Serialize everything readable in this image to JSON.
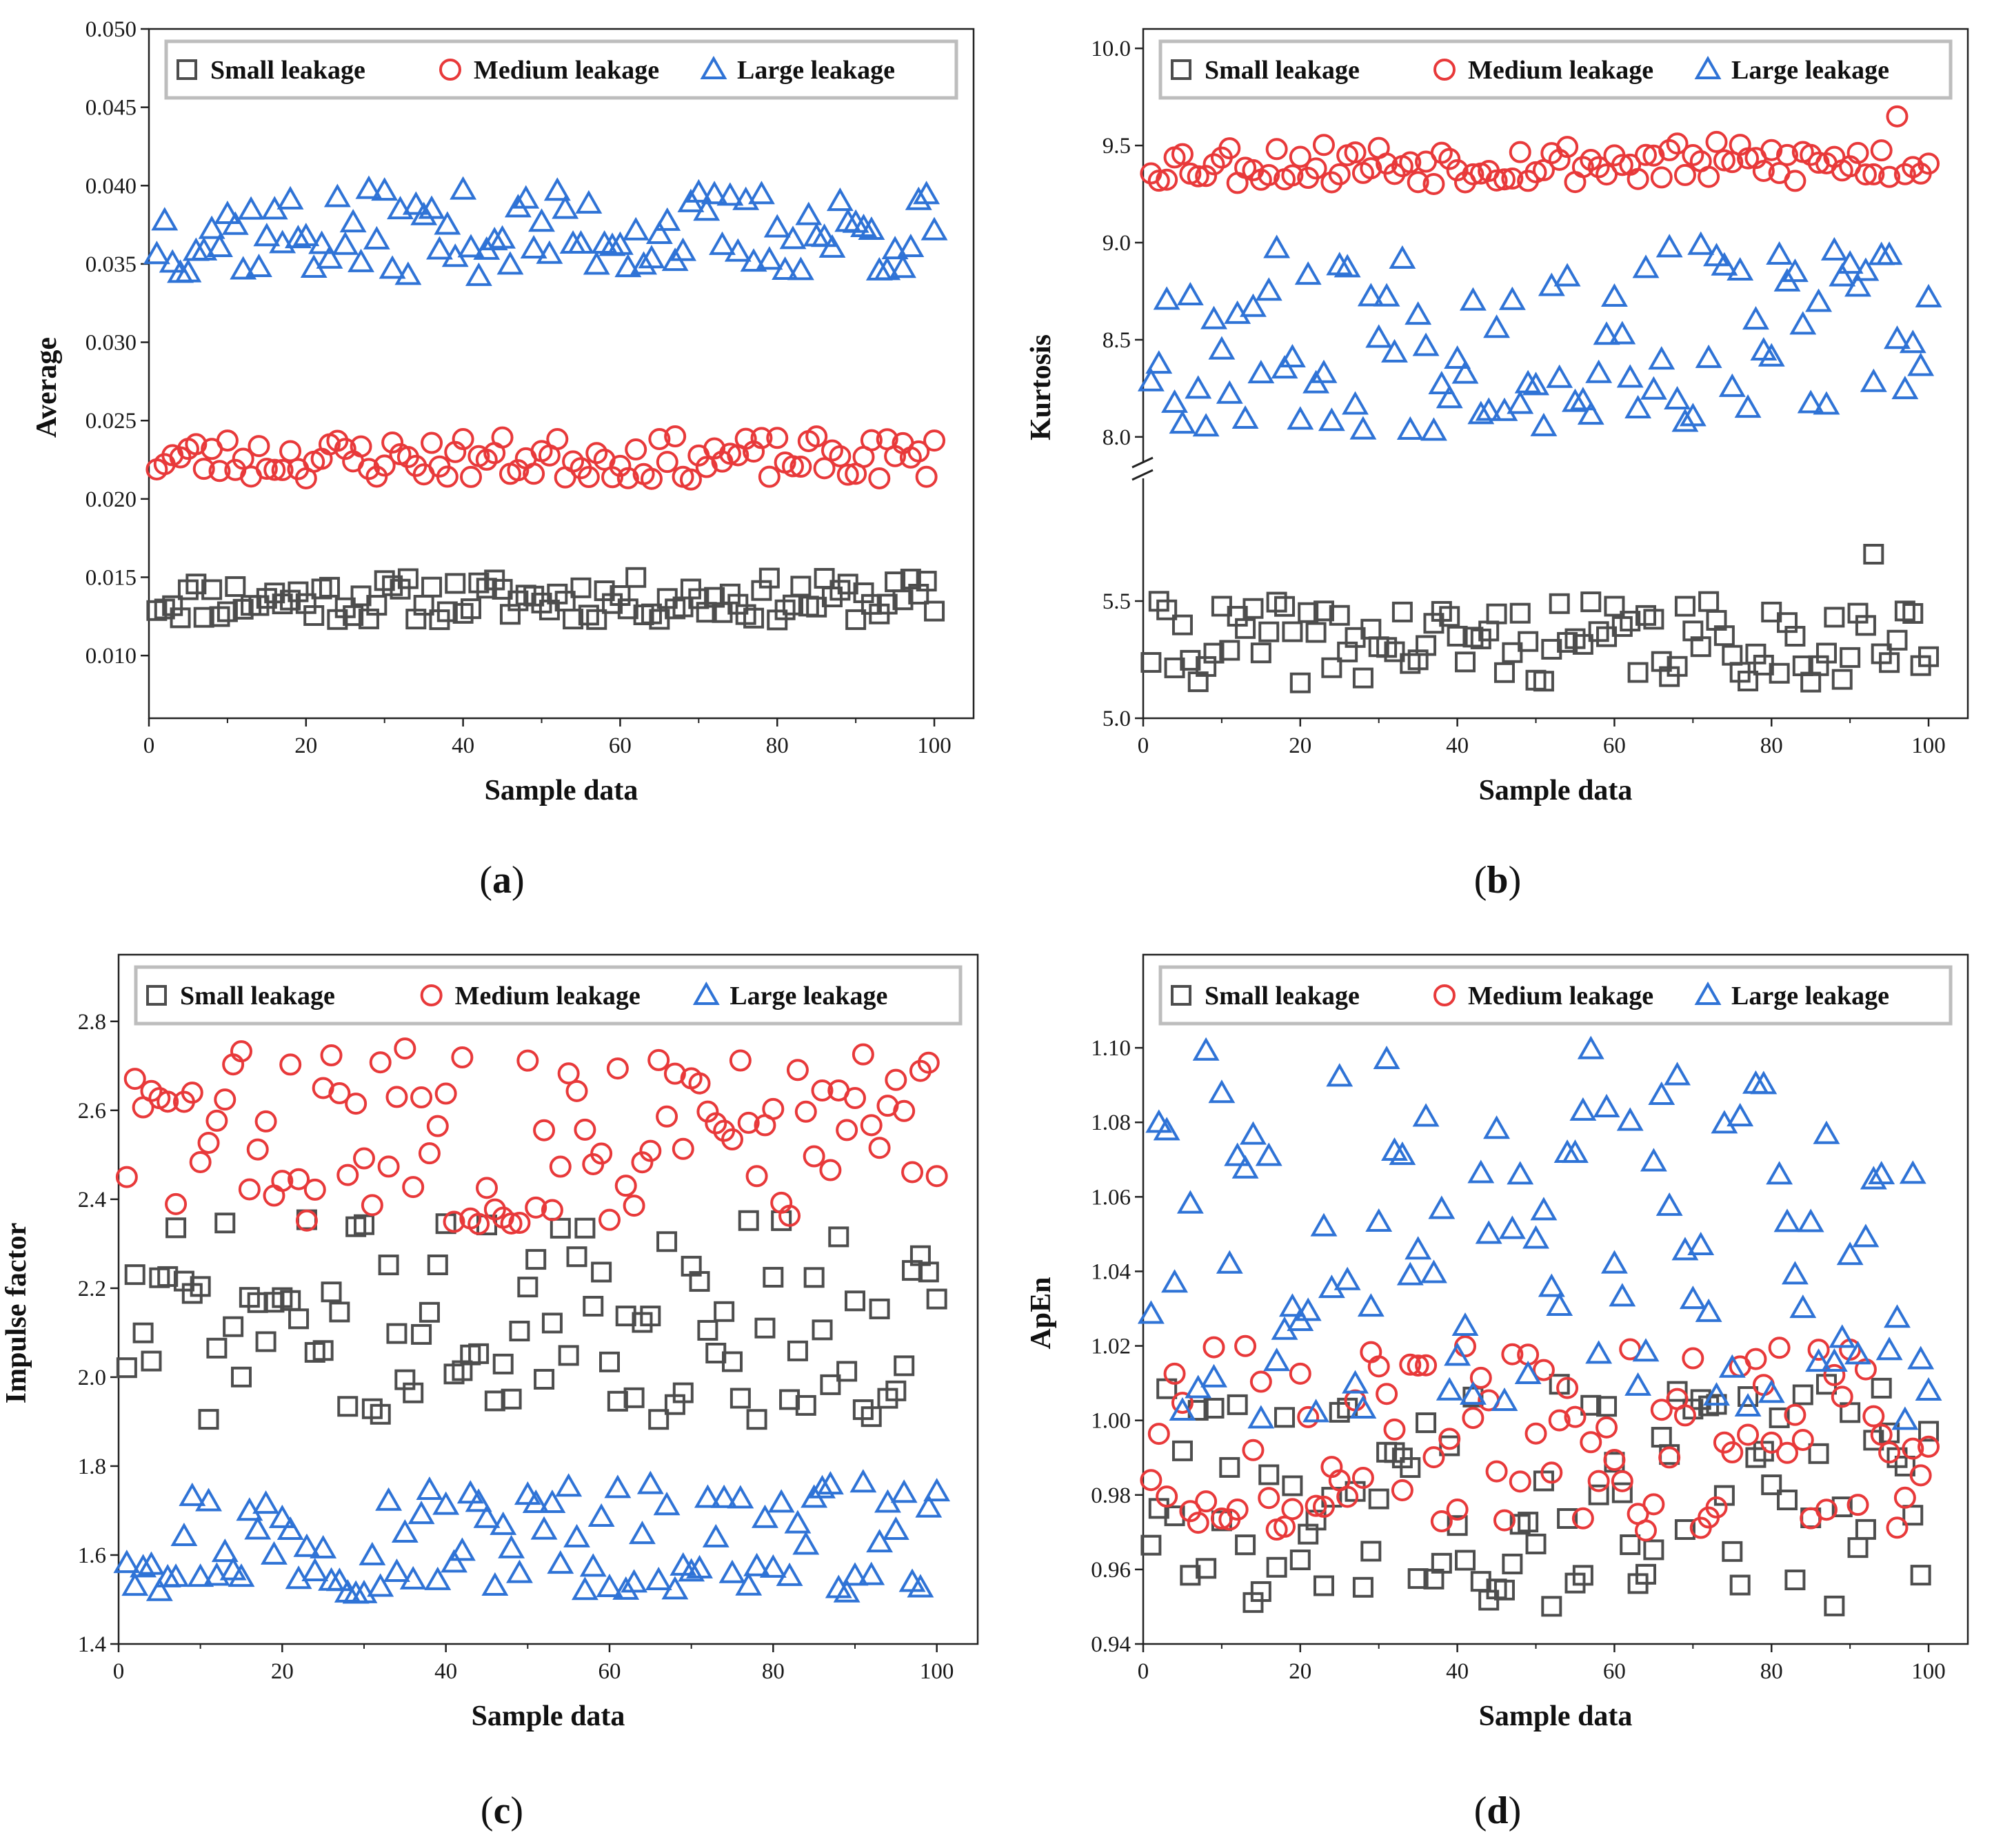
{
  "figure": {
    "panels": [
      {
        "label": "a",
        "legend": [
          "Small leakage",
          "Medium leakage",
          "Large leakage"
        ]
      },
      {
        "label": "b",
        "legend": [
          "Small leakage",
          "Medium leakage",
          "Large leakage"
        ]
      },
      {
        "label": "c",
        "legend": [
          "Small leakage",
          "Medium leakage",
          "Large leakage"
        ]
      },
      {
        "label": "d",
        "legend": [
          "Small leakage",
          "Medium leakage",
          "Large leakage"
        ]
      }
    ]
  },
  "chart_data": [
    {
      "type": "scatter",
      "panel": "a",
      "xlabel": "Sample data",
      "ylabel": "Average",
      "xlim": [
        0,
        105
      ],
      "ylim": [
        0.006,
        0.05
      ],
      "x_ticks": [
        "0",
        "20",
        "40",
        "60",
        "80",
        "100"
      ],
      "y_ticks": [
        "0.010",
        "0.015",
        "0.020",
        "0.025",
        "0.030",
        "0.035",
        "0.040",
        "0.045",
        "0.050"
      ],
      "legend_position": "top",
      "series": [
        {
          "name": "Small leakage",
          "marker": "square",
          "color": "#4d4d4d",
          "x_range": [
            1,
            100
          ],
          "y_band": [
            0.0122,
            0.015
          ],
          "seed": 11
        },
        {
          "name": "Medium leakage",
          "marker": "circle",
          "color": "#e8393a",
          "x_range": [
            1,
            100
          ],
          "y_band": [
            0.0212,
            0.024
          ],
          "seed": 23
        },
        {
          "name": "Large leakage",
          "marker": "triangle",
          "color": "#2f73d6",
          "x_range": [
            1,
            100
          ],
          "y_band": [
            0.0342,
            0.0398
          ],
          "seed": 37
        }
      ]
    },
    {
      "type": "scatter",
      "panel": "b",
      "xlabel": "Sample data",
      "ylabel": "Kurtosis",
      "xlim": [
        0,
        105
      ],
      "broken_axis": true,
      "segments": [
        {
          "ylim": [
            5.0,
            6.0
          ],
          "y_ticks": [
            "5.0",
            "5.5"
          ]
        },
        {
          "ylim": [
            7.9,
            10.1
          ],
          "y_ticks": [
            "8.0",
            "8.5",
            "9.0",
            "9.5",
            "10.0"
          ]
        }
      ],
      "x_ticks": [
        "0",
        "20",
        "40",
        "60",
        "80",
        "100"
      ],
      "legend_position": "top",
      "series": [
        {
          "name": "Small leakage",
          "marker": "square",
          "color": "#4d4d4d",
          "x_range": [
            1,
            100
          ],
          "y_band": [
            5.15,
            5.5
          ],
          "seed": 41,
          "outliers": [
            {
              "x": 93,
              "y": 5.7
            }
          ]
        },
        {
          "name": "Medium leakage",
          "marker": "circle",
          "color": "#e8393a",
          "x_range": [
            1,
            100
          ],
          "y_band": [
            9.3,
            9.52
          ],
          "seed": 53,
          "outliers": [
            {
              "x": 96,
              "y": 9.65
            }
          ]
        },
        {
          "name": "Large leakage",
          "marker": "triangle",
          "color": "#2f73d6",
          "x_range": [
            1,
            100
          ],
          "y_band": [
            8.03,
            9.0
          ],
          "seed": 67
        }
      ]
    },
    {
      "type": "scatter",
      "panel": "c",
      "xlabel": "Sample data",
      "ylabel": "Impulse factor",
      "xlim": [
        0,
        105
      ],
      "ylim": [
        1.4,
        2.95
      ],
      "x_ticks": [
        "0",
        "20",
        "40",
        "60",
        "80",
        "100"
      ],
      "y_ticks": [
        "1.4",
        "1.6",
        "1.8",
        "2.0",
        "2.2",
        "2.4",
        "2.6",
        "2.8"
      ],
      "legend_position": "top",
      "series": [
        {
          "name": "Small leakage",
          "marker": "square",
          "color": "#4d4d4d",
          "x_range": [
            1,
            100
          ],
          "y_band": [
            1.9,
            2.36
          ],
          "seed": 71
        },
        {
          "name": "Medium leakage",
          "marker": "circle",
          "color": "#e8393a",
          "x_range": [
            1,
            100
          ],
          "y_band": [
            2.34,
            2.75
          ],
          "seed": 83
        },
        {
          "name": "Large leakage",
          "marker": "triangle",
          "color": "#2f73d6",
          "x_range": [
            1,
            100
          ],
          "y_band": [
            1.51,
            1.77
          ],
          "seed": 97
        }
      ]
    },
    {
      "type": "scatter",
      "panel": "d",
      "xlabel": "Sample data",
      "ylabel": "ApEn",
      "xlim": [
        0,
        105
      ],
      "ylim": [
        0.94,
        1.125
      ],
      "x_ticks": [
        "0",
        "20",
        "40",
        "60",
        "80",
        "100"
      ],
      "y_ticks": [
        "0.94",
        "0.96",
        "0.98",
        "1.00",
        "1.02",
        "1.04",
        "1.06",
        "1.08",
        "1.10"
      ],
      "legend_position": "top",
      "series": [
        {
          "name": "Small leakage",
          "marker": "square",
          "color": "#4d4d4d",
          "x_range": [
            1,
            100
          ],
          "y_band": [
            0.95,
            1.01
          ],
          "seed": 101
        },
        {
          "name": "Medium leakage",
          "marker": "circle",
          "color": "#e8393a",
          "x_range": [
            1,
            100
          ],
          "y_band": [
            0.97,
            1.02
          ],
          "seed": 113
        },
        {
          "name": "Large leakage",
          "marker": "triangle",
          "color": "#2f73d6",
          "x_range": [
            1,
            100
          ],
          "y_band": [
            1.0,
            1.1
          ],
          "seed": 127
        }
      ]
    }
  ]
}
